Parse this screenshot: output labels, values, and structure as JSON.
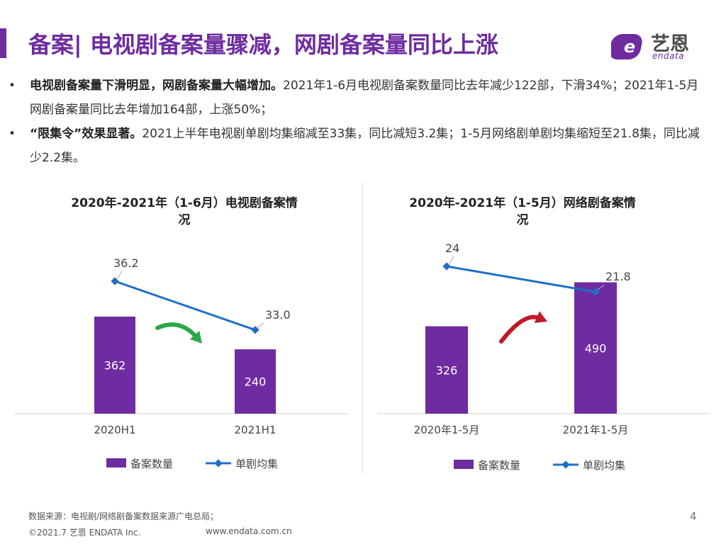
{
  "header": {
    "title": "备案| 电视剧备案量骤减，网剧备案量同比上涨",
    "logo_text": "艺恩",
    "logo_sub": "endata"
  },
  "bullets": [
    {
      "bold": "电视剧备案量下滑明显，网剧备案量大幅增加。",
      "text": "2021年1-6月电视剧备案数量同比去年减少122部，下滑34%；2021年1-5月网剧备案量同比去年增加164部，上涨50%；"
    },
    {
      "bold": "“限集令”效果显著。",
      "text": "2021上半年电视剧单剧均集缩减至33集，同比减短3.2集；1-5月网络剧单剧均集缩短至21.8集，同比减少2.2集。"
    }
  ],
  "chart_data": [
    {
      "type": "bar",
      "title_line1": "2020年-2021年（1-6月）电视剧备案情",
      "title_line2": "况",
      "categories": [
        "2020H1",
        "2021H1"
      ],
      "series": [
        {
          "name": "备案数量",
          "type": "bar",
          "values": [
            362,
            240
          ],
          "labels": [
            "362",
            "240"
          ],
          "color": "#6e2ca0"
        },
        {
          "name": "单剧均集",
          "type": "line",
          "values": [
            36.2,
            33.0
          ],
          "labels": [
            "36.2",
            "33.0"
          ],
          "color": "#1f6fc6"
        }
      ],
      "arrow_color": "#2aa84a",
      "legend": "bottom"
    },
    {
      "type": "bar",
      "title_line1": "2020年-2021年（1-5月）网络剧备案情",
      "title_line2": "况",
      "categories": [
        "2020年1-5月",
        "2021年1-5月"
      ],
      "series": [
        {
          "name": "备案数量",
          "type": "bar",
          "values": [
            326,
            490
          ],
          "labels": [
            "326",
            "490"
          ],
          "color": "#6e2ca0"
        },
        {
          "name": "单剧均集",
          "type": "line",
          "values": [
            24,
            21.8
          ],
          "labels": [
            "24",
            "21.8"
          ],
          "color": "#1f6fc6"
        }
      ],
      "arrow_color": "#c0192a",
      "legend": "bottom"
    }
  ],
  "footer": {
    "source": "数据来源：电视剧/网络剧备案数据来源广电总局；",
    "copyright": "©2021.7 艺恩 ENDATA Inc.",
    "url": "www.endata.com.cn",
    "page": "4"
  },
  "colors": {
    "accent": "#6e2ca0",
    "line": "#1f6fc6"
  }
}
